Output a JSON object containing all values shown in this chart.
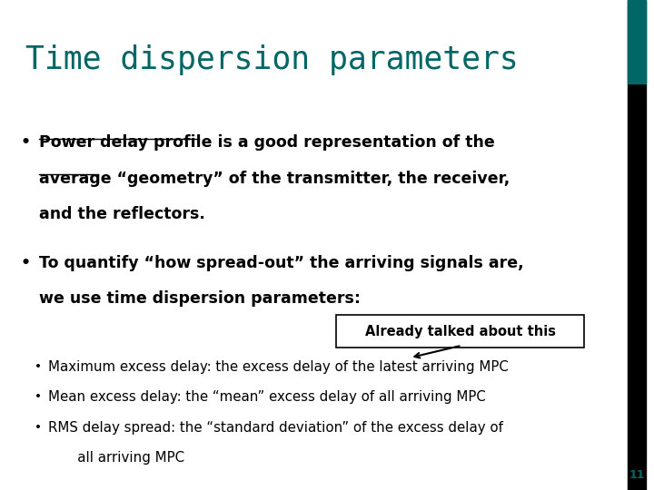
{
  "title": "Time dispersion parameters",
  "title_color": "#006666",
  "background_color": "#ffffff",
  "right_bar_color": "#000000",
  "right_bar_teal": "#006666",
  "slide_number": "11",
  "bullet1_line1_underline": "Power delay profile",
  "bullet1_line1_rest": " is a good representation of the",
  "bullet1_line2_underline": "average",
  "bullet1_line2_rest": " “geometry” of the transmitter, the receiver,",
  "bullet1_line3": "and the reflectors.",
  "bullet2_line1": "To quantify “how spread-out” the arriving signals are,",
  "bullet2_line2": "we use time dispersion parameters:",
  "callout_text": "Already talked about this",
  "sub_bullet1": "Maximum excess delay: the excess delay of the latest arriving MPC",
  "sub_bullet2": "Mean excess delay: the “mean” excess delay of all arriving MPC",
  "sub_bullet3a": "RMS delay spread: the “standard deviation” of the excess delay of",
  "sub_bullet3b": "   all arriving MPC",
  "text_color": "#000000"
}
